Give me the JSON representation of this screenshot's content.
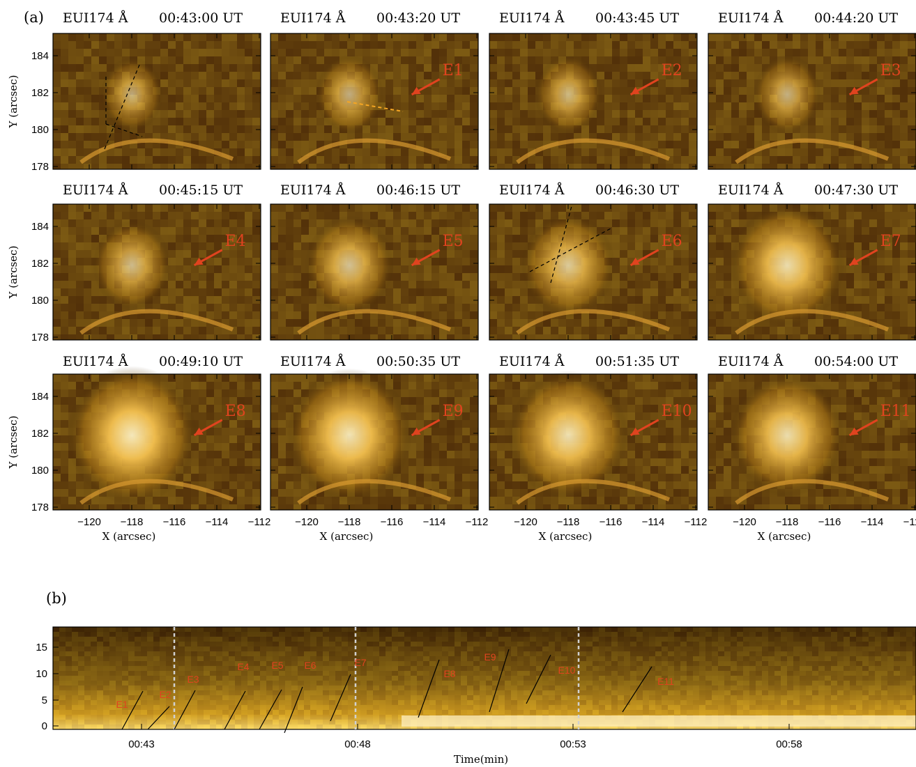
{
  "figure": {
    "panel_a_label": "(a)",
    "panel_b_label": "(b)"
  },
  "panel_a": {
    "xlabel": "X (arcsec)",
    "ylabel": "Y (arcsec)",
    "xticks": [
      "−120",
      "−118",
      "−116",
      "−114",
      "−112"
    ],
    "yticks": [
      "184",
      "182",
      "180",
      "178"
    ],
    "panels": [
      {
        "instrument": "EUI174 Å",
        "time": "00:43:00 UT",
        "event": "",
        "brightness": 0.2
      },
      {
        "instrument": "EUI174 Å",
        "time": "00:43:20 UT",
        "event": "E1",
        "brightness": 0.25
      },
      {
        "instrument": "EUI174 Å",
        "time": "00:43:45 UT",
        "event": "E2",
        "brightness": 0.25
      },
      {
        "instrument": "EUI174 Å",
        "time": "00:44:20 UT",
        "event": "E3",
        "brightness": 0.25
      },
      {
        "instrument": "EUI174 Å",
        "time": "00:45:15 UT",
        "event": "E4",
        "brightness": 0.35
      },
      {
        "instrument": "EUI174 Å",
        "time": "00:46:15 UT",
        "event": "E5",
        "brightness": 0.45
      },
      {
        "instrument": "EUI174 Å",
        "time": "00:46:30 UT",
        "event": "E6",
        "brightness": 0.5
      },
      {
        "instrument": "EUI174 Å",
        "time": "00:47:30 UT",
        "event": "E7",
        "brightness": 0.7
      },
      {
        "instrument": "EUI174 Å",
        "time": "00:49:10 UT",
        "event": "E8",
        "brightness": 0.85
      },
      {
        "instrument": "EUI174 Å",
        "time": "00:50:35 UT",
        "event": "E9",
        "brightness": 0.8
      },
      {
        "instrument": "EUI174 Å",
        "time": "00:51:35 UT",
        "event": "E10",
        "brightness": 0.75
      },
      {
        "instrument": "EUI174 Å",
        "time": "00:54:00 UT",
        "event": "E11",
        "brightness": 0.7
      }
    ]
  },
  "panel_b": {
    "xlabel": "Time(min)",
    "xticks": [
      "00:43",
      "00:48",
      "00:53",
      "00:58"
    ],
    "yticks": [
      "15",
      "10",
      "5",
      "0"
    ],
    "events": [
      "E1",
      "E2",
      "E3",
      "E4",
      "E5",
      "E6",
      "E7",
      "E8",
      "E9",
      "E10",
      "E11"
    ]
  },
  "colors": {
    "event_red": "#e0431f",
    "frame": "#000000",
    "dashed_white": "#d0d0d0",
    "dashed_orange": "#f5a623"
  }
}
